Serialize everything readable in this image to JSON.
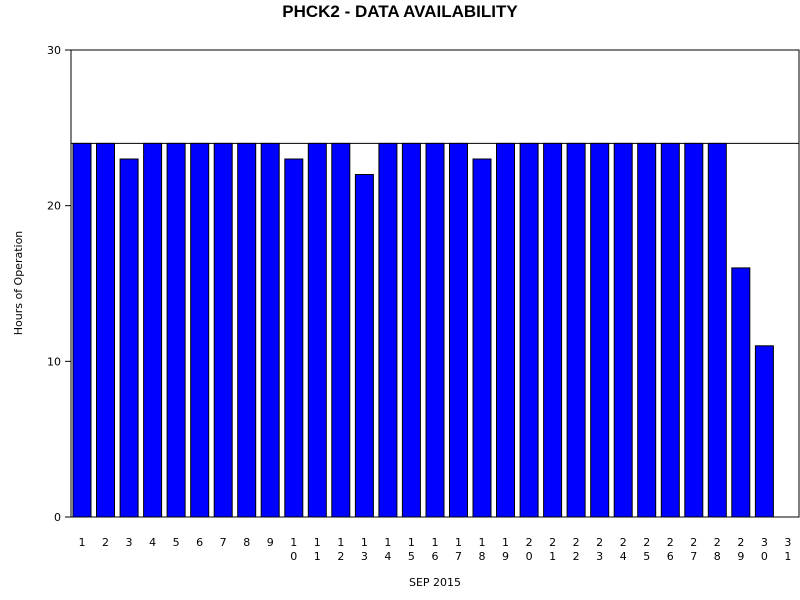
{
  "chart_data": {
    "type": "bar",
    "title": "PHCK2 - DATA AVAILABILITY",
    "xlabel": "SEP 2015",
    "ylabel": "Hours of Operation",
    "ylim": [
      0,
      30
    ],
    "yticks": [
      0,
      10,
      20,
      30
    ],
    "reference_line": 24,
    "bar_color": "#0000ff",
    "categories": [
      "1",
      "2",
      "3",
      "4",
      "5",
      "6",
      "7",
      "8",
      "9",
      "10",
      "11",
      "12",
      "13",
      "14",
      "15",
      "16",
      "17",
      "18",
      "19",
      "20",
      "21",
      "22",
      "23",
      "24",
      "25",
      "26",
      "27",
      "28",
      "29",
      "30",
      "31"
    ],
    "values": [
      24,
      24,
      23,
      24,
      24,
      24,
      24,
      24,
      24,
      23,
      24,
      24,
      22,
      24,
      24,
      24,
      24,
      23,
      24,
      24,
      24,
      24,
      24,
      24,
      24,
      24,
      24,
      24,
      16,
      11,
      0
    ],
    "grid": false
  }
}
